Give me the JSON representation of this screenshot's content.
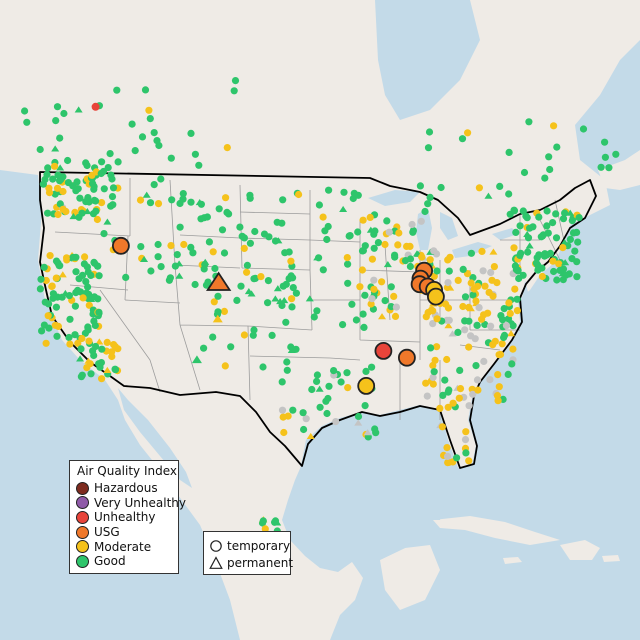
{
  "legend": {
    "title": "Air Quality Index",
    "categories": [
      {
        "label": "Hazardous",
        "color": "#7e2b1f"
      },
      {
        "label": "Very Unhealthy",
        "color": "#8f5aa8"
      },
      {
        "label": "Unhealthy",
        "color": "#e8443a"
      },
      {
        "label": "USG",
        "color": "#f0782a"
      },
      {
        "label": "Moderate",
        "color": "#f5c21b"
      },
      {
        "label": "Good",
        "color": "#2ec56b"
      }
    ],
    "no_data_color": "#c4c4c4"
  },
  "shape_legend": {
    "temporary_label": "temporary",
    "permanent_label": "permanent"
  },
  "colors": {
    "ocean": "#c3dae8",
    "land": "#efebe6",
    "lake": "#c3dae8",
    "border": "#000000",
    "state_line": "#9c9c9c"
  },
  "monitors": [
    {
      "lat": 43.0,
      "lon": -116.0,
      "cat": "USG",
      "shape": "circle",
      "size": "large"
    },
    {
      "lat": 39.7,
      "lon": -105.2,
      "cat": "USG",
      "shape": "triangle",
      "size": "large"
    },
    {
      "lat": 33.7,
      "lon": -87.0,
      "cat": "Unhealthy",
      "shape": "circle",
      "size": "large"
    },
    {
      "lat": 33.1,
      "lon": -84.4,
      "cat": "USG",
      "shape": "circle",
      "size": "large"
    },
    {
      "lat": 30.6,
      "lon": -88.9,
      "cat": "Moderate",
      "shape": "circle",
      "size": "large"
    },
    {
      "lat": 40.8,
      "lon": -82.5,
      "cat": "USG",
      "shape": "circle",
      "size": "large"
    },
    {
      "lat": 40.1,
      "lon": -82.9,
      "cat": "USG",
      "shape": "circle",
      "size": "large"
    },
    {
      "lat": 39.6,
      "lon": -83.0,
      "cat": "USG",
      "shape": "circle",
      "size": "large"
    },
    {
      "lat": 39.4,
      "lon": -82.1,
      "cat": "USG",
      "shape": "circle",
      "size": "large"
    },
    {
      "lat": 39.1,
      "lon": -81.4,
      "cat": "Moderate",
      "shape": "circle",
      "size": "large"
    },
    {
      "lat": 38.5,
      "lon": -81.2,
      "cat": "Moderate",
      "shape": "circle",
      "size": "large"
    },
    {
      "lat": 55.3,
      "lon": -118.8,
      "cat": "Unhealthy",
      "shape": "circle",
      "size": "small"
    },
    {
      "lat": 36.5,
      "lon": -105.3,
      "cat": "Moderate",
      "shape": "triangle",
      "size": "small"
    },
    {
      "lat": 32.9,
      "lon": -107.6,
      "cat": "Good",
      "shape": "triangle",
      "size": "small"
    }
  ]
}
